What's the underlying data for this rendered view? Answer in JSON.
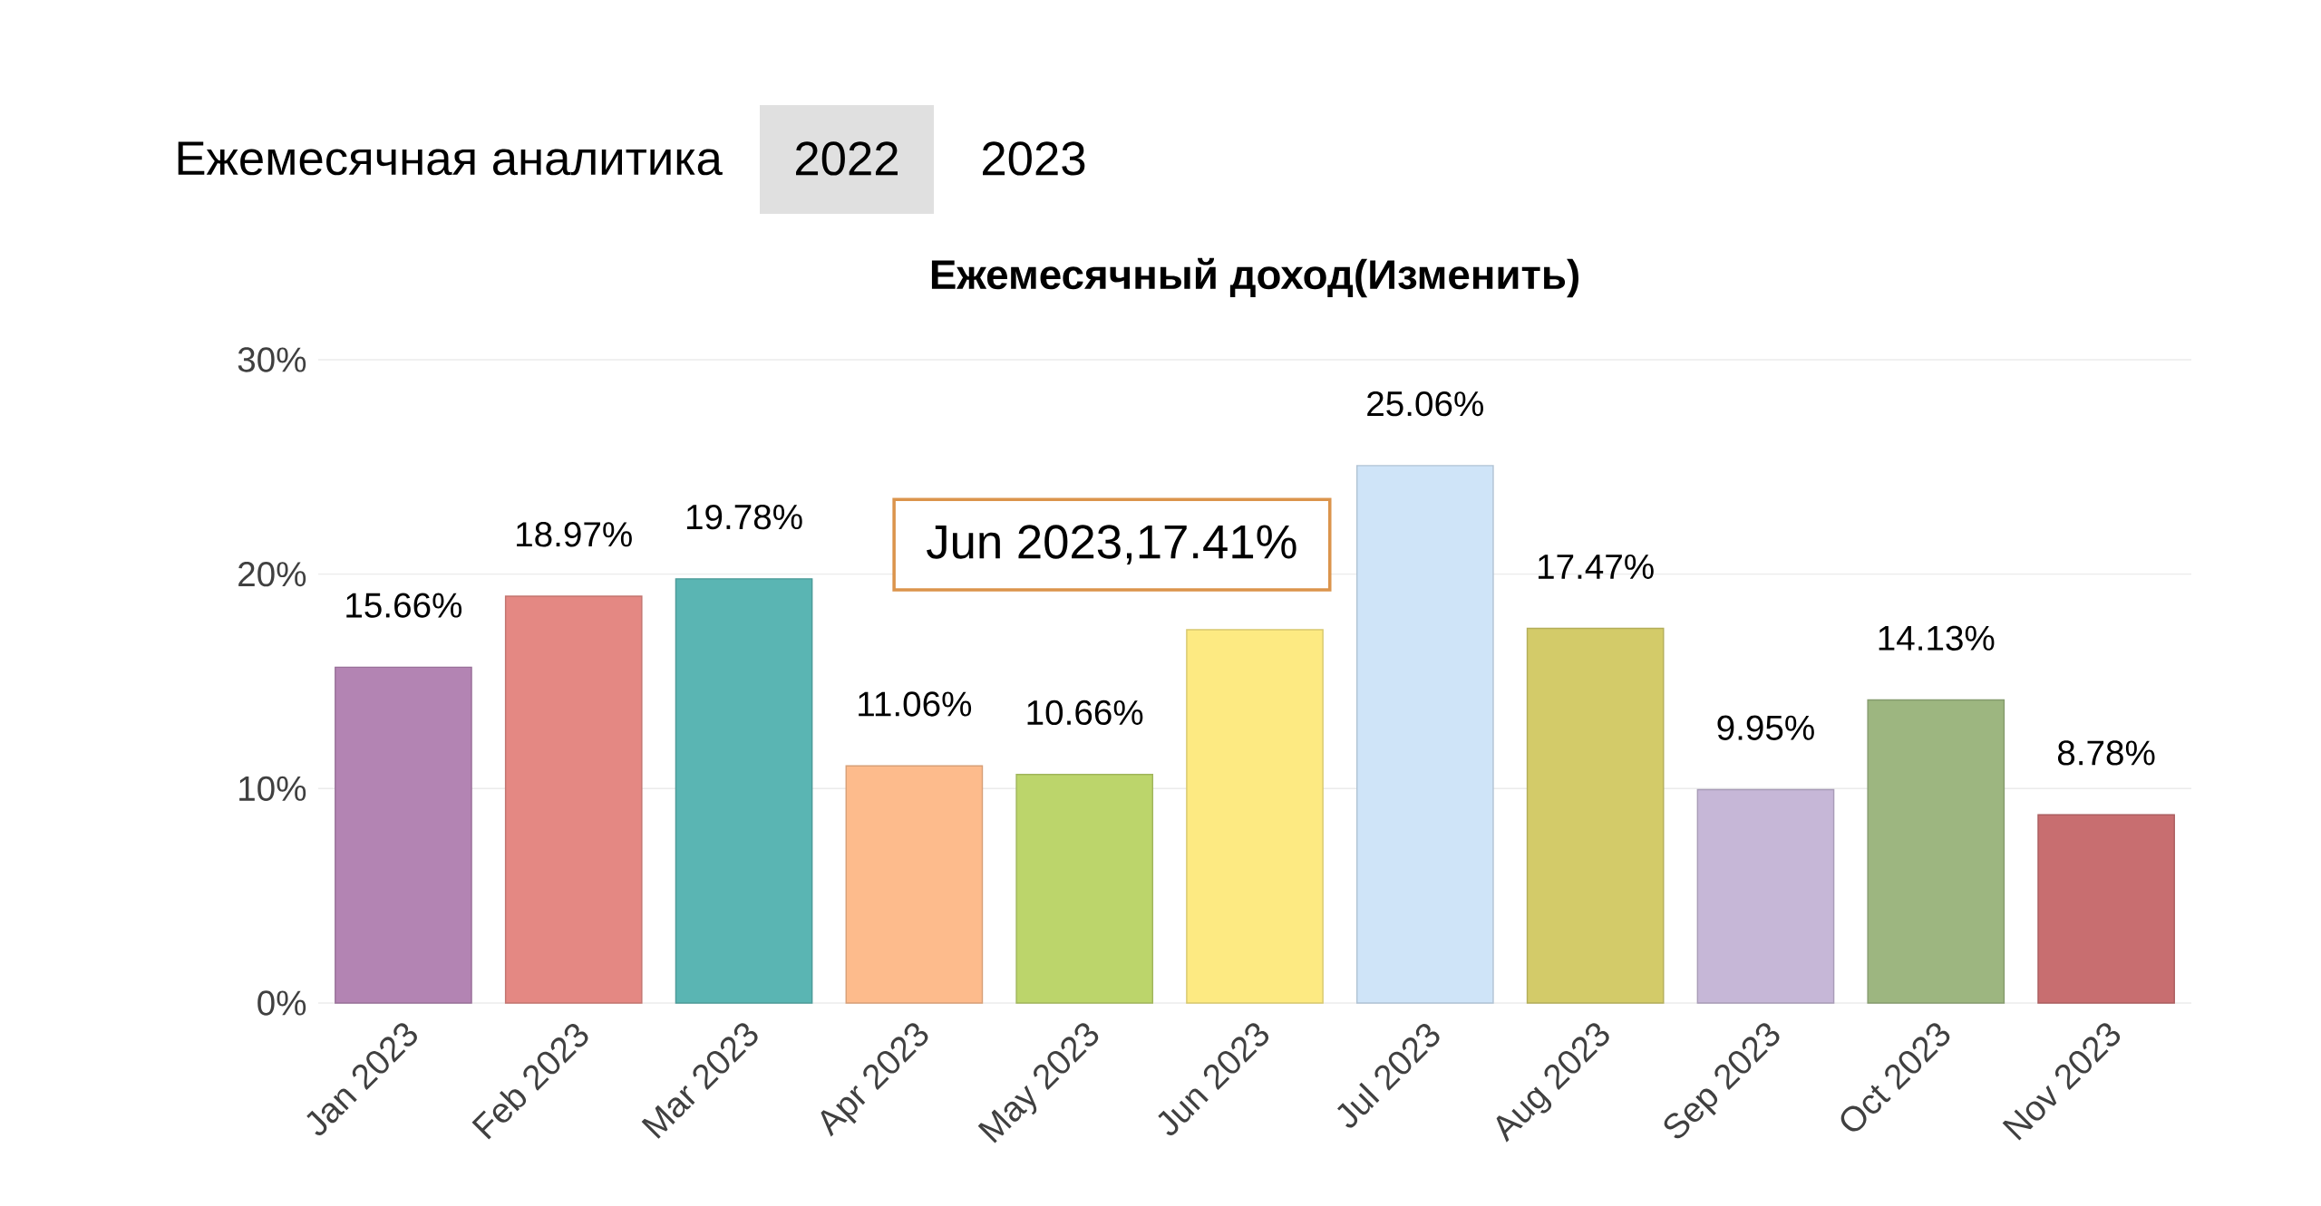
{
  "chart_data": {
    "type": "bar",
    "title": "Ежемесячный доход(Изменить)",
    "categories": [
      "Jan 2023",
      "Feb 2023",
      "Mar 2023",
      "Apr 2023",
      "May 2023",
      "Jun 2023",
      "Jul 2023",
      "Aug 2023",
      "Sep 2023",
      "Oct 2023",
      "Nov 2023"
    ],
    "values": [
      15.66,
      18.97,
      19.78,
      11.06,
      10.66,
      17.41,
      25.06,
      17.47,
      9.95,
      14.13,
      8.78
    ],
    "colors": [
      "#b384b3",
      "#e48883",
      "#5ab5b3",
      "#fdbb8c",
      "#bcd56b",
      "#fdea82",
      "#cfe4f8",
      "#d3cb69",
      "#c6b7d7",
      "#9db680",
      "#c86e70"
    ],
    "value_labels": [
      "15.66%",
      "18.97%",
      "19.78%",
      "11.06%",
      "10.66%",
      null,
      "25.06%",
      "17.47%",
      "9.95%",
      "14.13%",
      "8.78%"
    ],
    "ylim": [
      0,
      30
    ],
    "yticks": [
      {
        "value": 0,
        "label": "0%"
      },
      {
        "value": 10,
        "label": "10%"
      },
      {
        "value": 20,
        "label": "20%"
      },
      {
        "value": 30,
        "label": "30%"
      }
    ],
    "grid": "y",
    "annotations": [
      "Ежемесячная аналитика",
      "2022",
      "2023",
      {
        "text": "Jun 2023,17.41%",
        "x": "Jun 2023",
        "y": 17.41
      }
    ]
  }
}
